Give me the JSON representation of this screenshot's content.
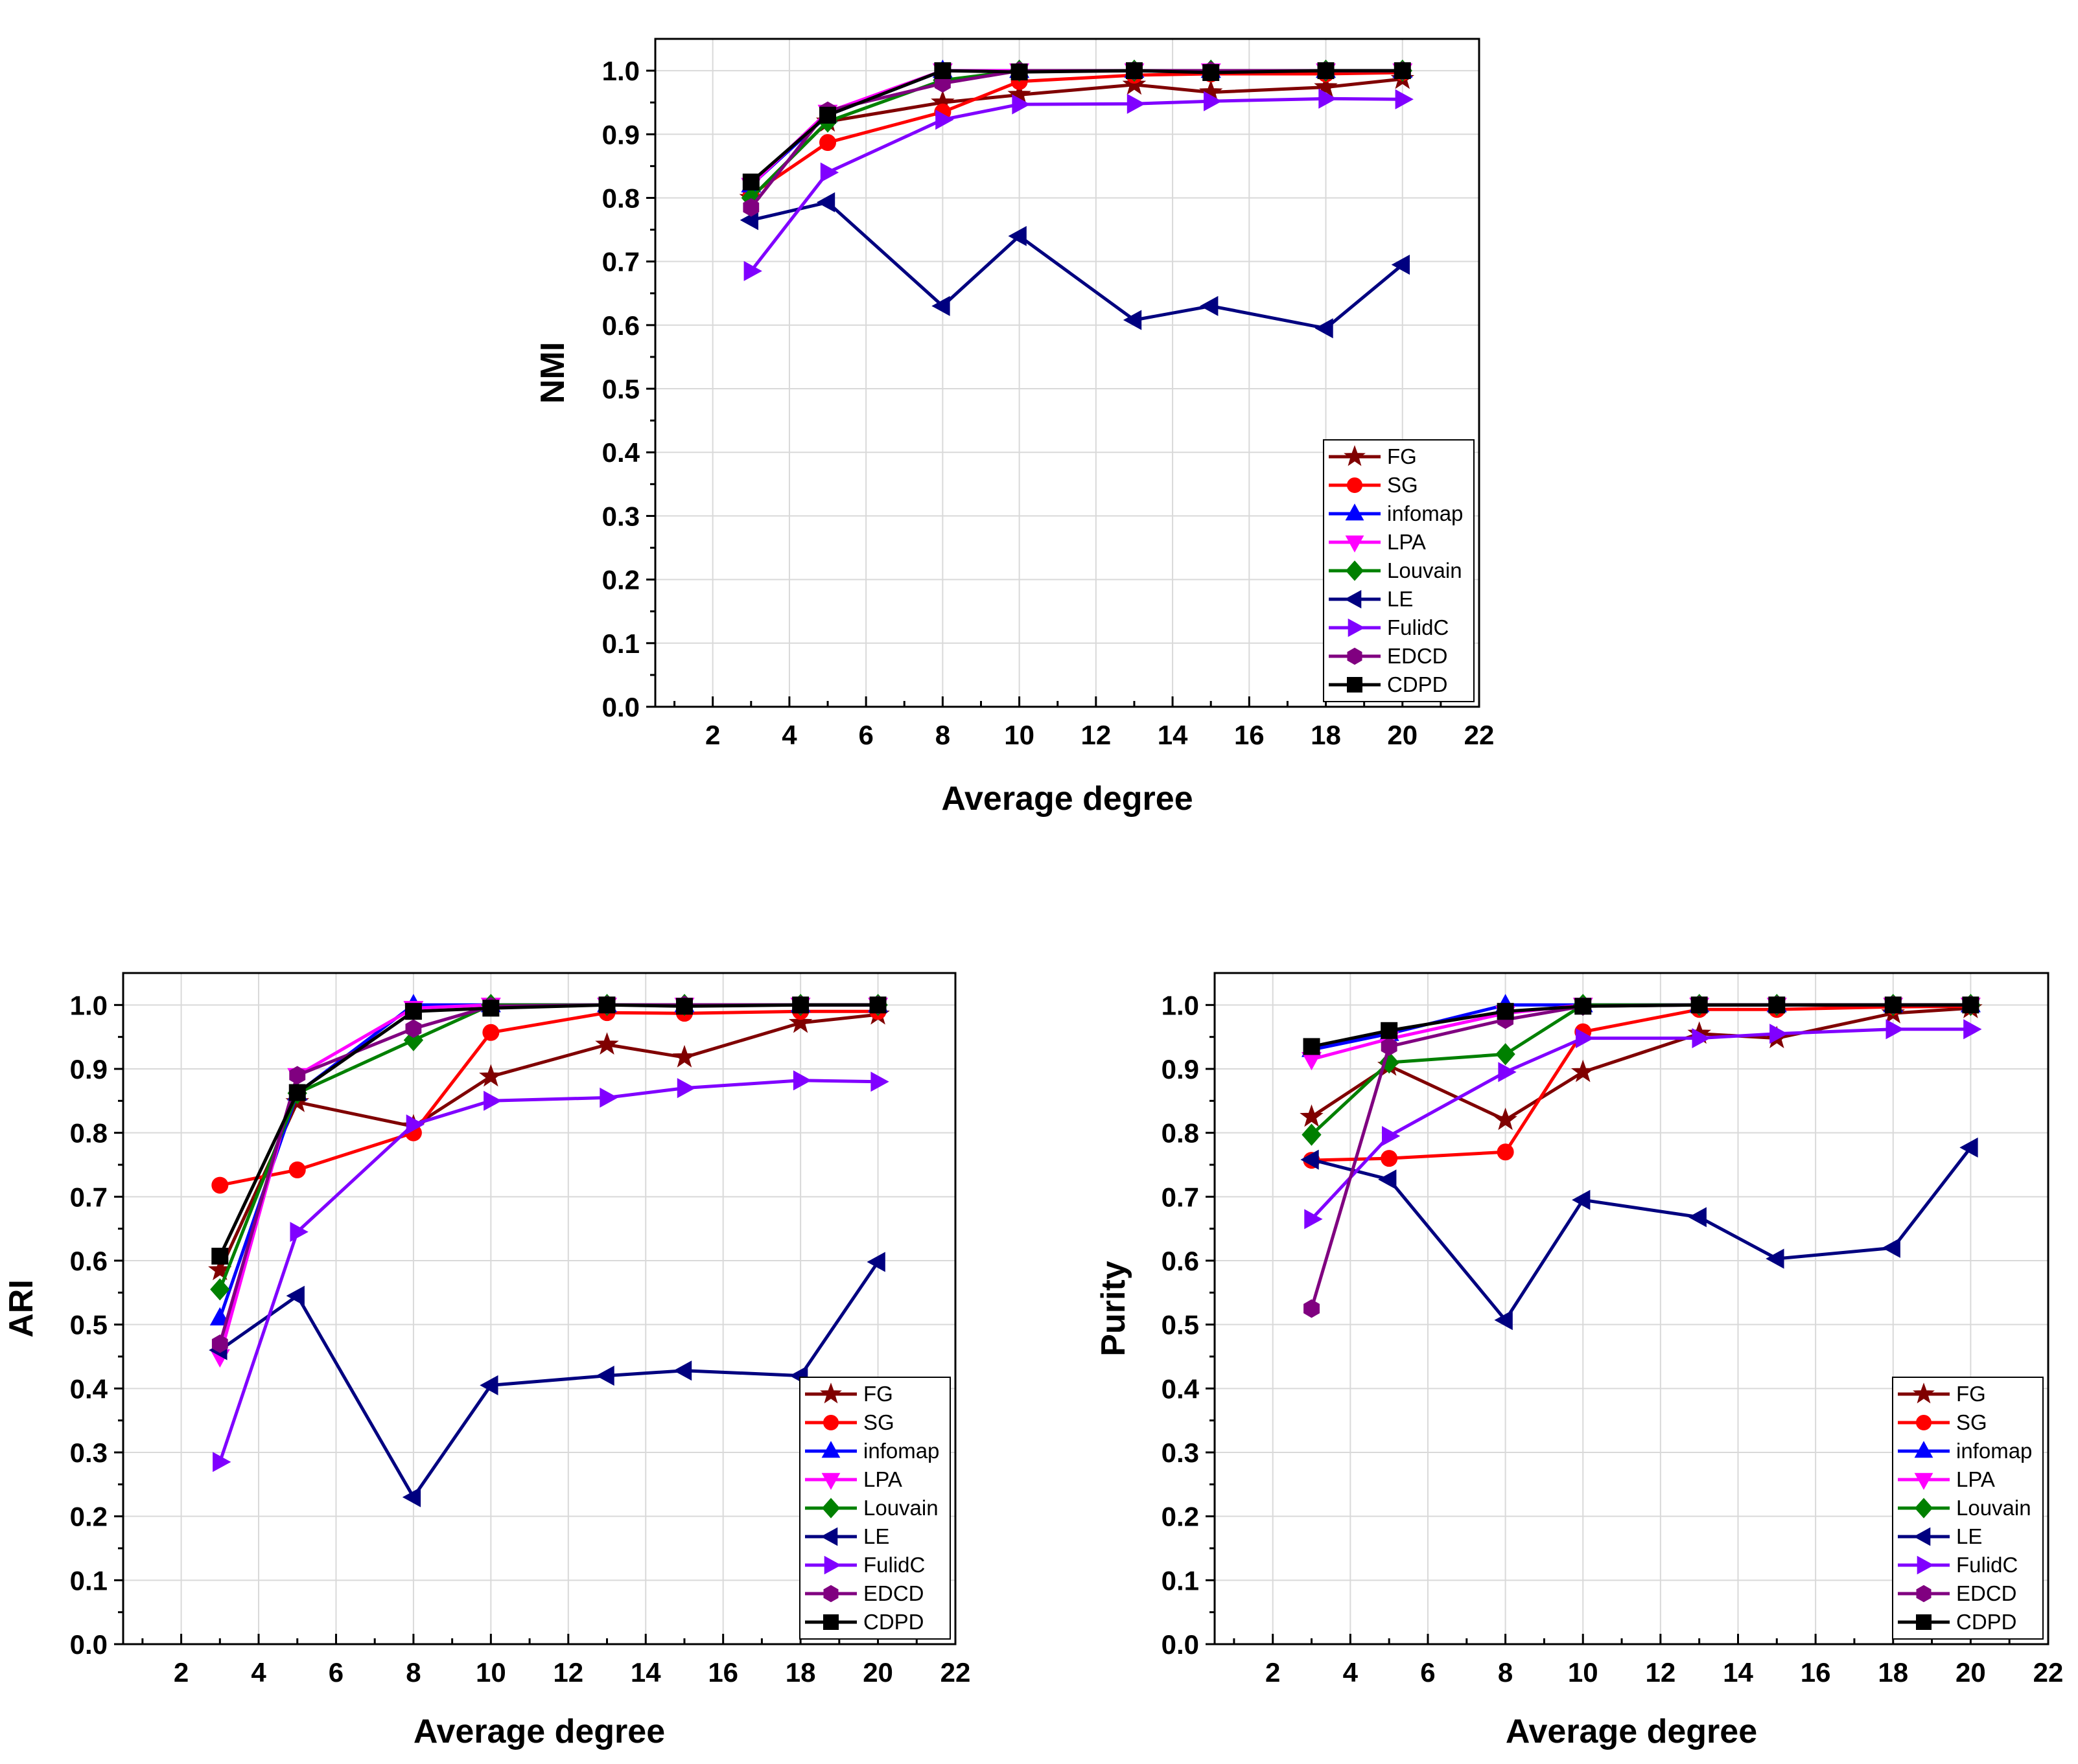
{
  "colors": {
    "FG": "#800000",
    "SG": "#ff0000",
    "infomap": "#0000ff",
    "LPA": "#ff00ff",
    "Louvain": "#008000",
    "LE": "#000080",
    "FulidC": "#8000ff",
    "EDCD": "#800080",
    "CDPD": "#000000",
    "grid": "#d9d9d9"
  },
  "chart_data": [
    {
      "id": "nmi",
      "type": "line",
      "xlabel": "Average degree",
      "ylabel": "NMI",
      "xlim": [
        0.5,
        22
      ],
      "ylim": [
        0,
        1.05
      ],
      "xticks": [
        "2",
        "4",
        "6",
        "8",
        "10",
        "12",
        "14",
        "16",
        "18",
        "20",
        "22"
      ],
      "yticks": [
        "0.0",
        "0.1",
        "0.2",
        "0.3",
        "0.4",
        "0.5",
        "0.6",
        "0.7",
        "0.8",
        "0.9",
        "1.0"
      ],
      "legend_position": "bottom-right",
      "x": [
        3,
        5,
        8,
        10,
        13,
        15,
        18,
        20
      ],
      "series": [
        {
          "name": "FG",
          "marker": "star",
          "values": [
            0.8,
            0.92,
            0.95,
            0.962,
            0.978,
            0.966,
            0.974,
            0.987
          ]
        },
        {
          "name": "SG",
          "marker": "circle",
          "values": [
            0.805,
            0.887,
            0.935,
            0.983,
            0.993,
            0.995,
            0.995,
            0.997
          ]
        },
        {
          "name": "infomap",
          "marker": "triangle-up",
          "values": [
            0.82,
            0.93,
            1.0,
            1.0,
            1.0,
            1.0,
            1.0,
            1.0
          ]
        },
        {
          "name": "LPA",
          "marker": "triangle-down",
          "values": [
            0.82,
            0.935,
            1.0,
            1.0,
            1.0,
            1.0,
            1.0,
            1.0
          ]
        },
        {
          "name": "Louvain",
          "marker": "diamond",
          "values": [
            0.8,
            0.92,
            0.985,
            1.0,
            1.0,
            1.0,
            1.0,
            1.0
          ]
        },
        {
          "name": "LE",
          "marker": "triangle-left",
          "values": [
            0.765,
            0.793,
            0.63,
            0.74,
            0.608,
            0.63,
            0.595,
            0.695
          ]
        },
        {
          "name": "FulidC",
          "marker": "triangle-right",
          "values": [
            0.685,
            0.84,
            0.923,
            0.947,
            0.948,
            0.952,
            0.956,
            0.955
          ]
        },
        {
          "name": "EDCD",
          "marker": "hexagon",
          "values": [
            0.785,
            0.937,
            0.98,
            1.0,
            1.0,
            1.0,
            1.0,
            1.0
          ]
        },
        {
          "name": "CDPD",
          "marker": "square",
          "values": [
            0.825,
            0.93,
            1.0,
            0.998,
            1.0,
            0.997,
            1.0,
            1.0
          ]
        }
      ]
    },
    {
      "id": "ari",
      "type": "line",
      "xlabel": "Average degree",
      "ylabel": "ARI",
      "xlim": [
        0.5,
        22
      ],
      "ylim": [
        0,
        1.05
      ],
      "xticks": [
        "2",
        "4",
        "6",
        "8",
        "10",
        "12",
        "14",
        "16",
        "18",
        "20",
        "22"
      ],
      "yticks": [
        "0.0",
        "0.1",
        "0.2",
        "0.3",
        "0.4",
        "0.5",
        "0.6",
        "0.7",
        "0.8",
        "0.9",
        "1.0"
      ],
      "legend_position": "bottom-right",
      "x": [
        3,
        5,
        8,
        10,
        13,
        15,
        18,
        20
      ],
      "series": [
        {
          "name": "FG",
          "marker": "star",
          "values": [
            0.585,
            0.848,
            0.81,
            0.888,
            0.938,
            0.918,
            0.972,
            0.985
          ]
        },
        {
          "name": "SG",
          "marker": "circle",
          "values": [
            0.718,
            0.742,
            0.8,
            0.957,
            0.988,
            0.987,
            0.99,
            0.99
          ]
        },
        {
          "name": "infomap",
          "marker": "triangle-up",
          "values": [
            0.51,
            0.862,
            1.0,
            1.0,
            1.0,
            1.0,
            1.0,
            1.0
          ]
        },
        {
          "name": "LPA",
          "marker": "triangle-down",
          "values": [
            0.45,
            0.89,
            0.995,
            1.0,
            1.0,
            1.0,
            1.0,
            1.0
          ]
        },
        {
          "name": "Louvain",
          "marker": "diamond",
          "values": [
            0.555,
            0.862,
            0.945,
            1.0,
            1.0,
            1.0,
            1.0,
            1.0
          ]
        },
        {
          "name": "LE",
          "marker": "triangle-left",
          "values": [
            0.46,
            0.545,
            0.23,
            0.405,
            0.42,
            0.428,
            0.42,
            0.598
          ]
        },
        {
          "name": "FulidC",
          "marker": "triangle-right",
          "values": [
            0.285,
            0.645,
            0.813,
            0.85,
            0.855,
            0.87,
            0.882,
            0.88
          ]
        },
        {
          "name": "EDCD",
          "marker": "hexagon",
          "values": [
            0.47,
            0.89,
            0.963,
            0.998,
            1.0,
            1.0,
            1.0,
            1.0
          ]
        },
        {
          "name": "CDPD",
          "marker": "square",
          "values": [
            0.607,
            0.863,
            0.99,
            0.995,
            1.0,
            0.998,
            1.0,
            1.0
          ]
        }
      ]
    },
    {
      "id": "purity",
      "type": "line",
      "xlabel": "Average degree",
      "ylabel": "Purity",
      "xlim": [
        0.5,
        22
      ],
      "ylim": [
        0,
        1.05
      ],
      "xticks": [
        "2",
        "4",
        "6",
        "8",
        "10",
        "12",
        "14",
        "16",
        "18",
        "20",
        "22"
      ],
      "yticks": [
        "0.0",
        "0.1",
        "0.2",
        "0.3",
        "0.4",
        "0.5",
        "0.6",
        "0.7",
        "0.8",
        "0.9",
        "1.0"
      ],
      "legend_position": "bottom-right",
      "x": [
        3,
        5,
        8,
        10,
        13,
        15,
        18,
        20
      ],
      "series": [
        {
          "name": "FG",
          "marker": "star",
          "values": [
            0.825,
            0.905,
            0.82,
            0.895,
            0.955,
            0.948,
            0.987,
            0.995
          ]
        },
        {
          "name": "SG",
          "marker": "circle",
          "values": [
            0.757,
            0.76,
            0.77,
            0.958,
            0.993,
            0.993,
            0.997,
            0.998
          ]
        },
        {
          "name": "infomap",
          "marker": "triangle-up",
          "values": [
            0.93,
            0.955,
            1.0,
            1.0,
            1.0,
            1.0,
            1.0,
            1.0
          ]
        },
        {
          "name": "LPA",
          "marker": "triangle-down",
          "values": [
            0.915,
            0.947,
            0.987,
            1.0,
            1.0,
            1.0,
            1.0,
            1.0
          ]
        },
        {
          "name": "Louvain",
          "marker": "diamond",
          "values": [
            0.797,
            0.91,
            0.923,
            1.0,
            1.0,
            1.0,
            1.0,
            1.0
          ]
        },
        {
          "name": "LE",
          "marker": "triangle-left",
          "values": [
            0.758,
            0.727,
            0.507,
            0.695,
            0.668,
            0.603,
            0.62,
            0.777
          ]
        },
        {
          "name": "FulidC",
          "marker": "triangle-right",
          "values": [
            0.665,
            0.795,
            0.895,
            0.948,
            0.948,
            0.955,
            0.962,
            0.962
          ]
        },
        {
          "name": "EDCD",
          "marker": "hexagon",
          "values": [
            0.525,
            0.935,
            0.977,
            0.998,
            1.0,
            1.0,
            1.0,
            1.0
          ]
        },
        {
          "name": "CDPD",
          "marker": "square",
          "values": [
            0.935,
            0.96,
            0.99,
            0.998,
            1.0,
            1.0,
            1.0,
            1.0
          ]
        }
      ]
    }
  ]
}
